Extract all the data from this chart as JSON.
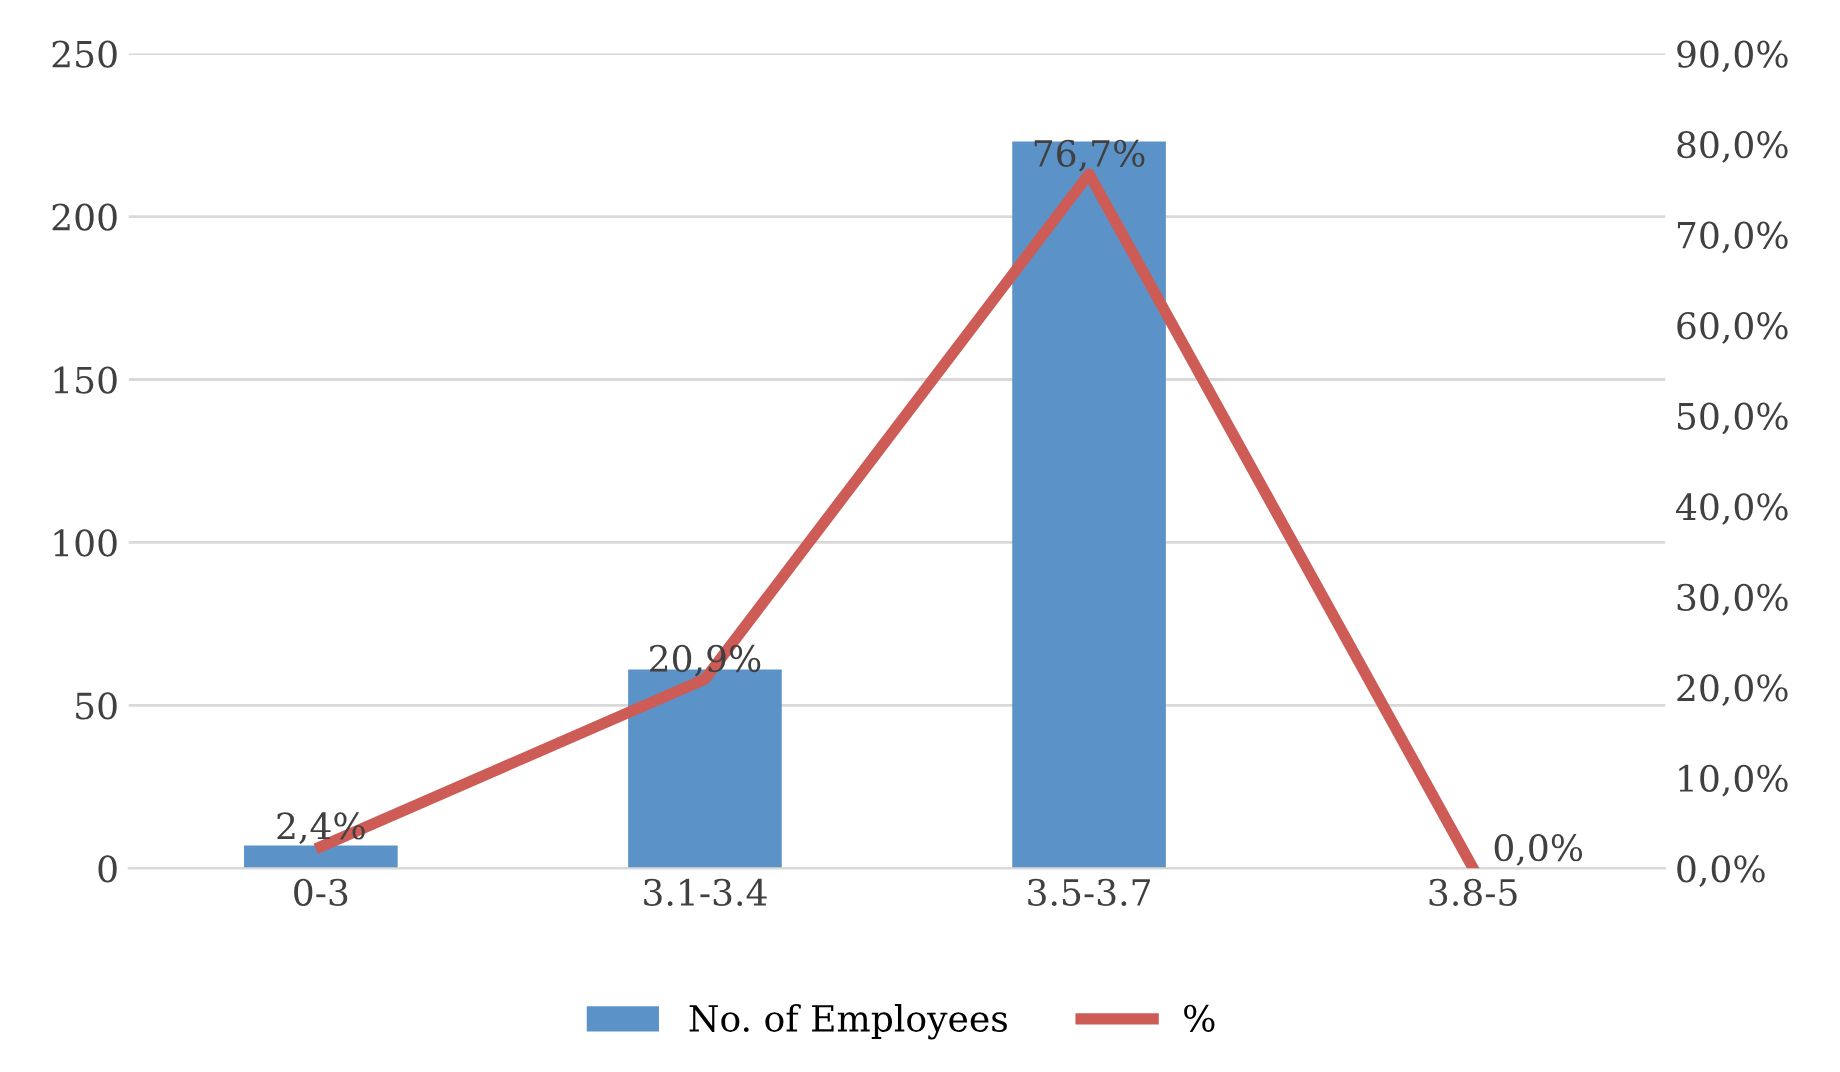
{
  "chart_data": {
    "type": "bar",
    "categories": [
      "0-3",
      "3.1-3.4",
      "3.5-3.7",
      "3.8-5"
    ],
    "series": [
      {
        "name": "No. of Employees",
        "color": "#5b93c8",
        "values": [
          7,
          61,
          223,
          0
        ]
      },
      {
        "name": "%",
        "type": "line",
        "axis": "y2",
        "color": "#cd5c57",
        "values": [
          2.4,
          20.9,
          76.7,
          0.0
        ],
        "value_labels": [
          "2,4%",
          "20,9%",
          "76,7%",
          "0,0%"
        ]
      }
    ],
    "ylim": [
      0,
      250
    ],
    "yticks": [
      0,
      50,
      100,
      150,
      200,
      250
    ],
    "y2lim": [
      0,
      90
    ],
    "y2ticks": [
      {
        "value": 0,
        "label": "0,0%"
      },
      {
        "value": 10,
        "label": "10,0%"
      },
      {
        "value": 20,
        "label": "20,0%"
      },
      {
        "value": 30,
        "label": "30,0%"
      },
      {
        "value": 40,
        "label": "40,0%"
      },
      {
        "value": 50,
        "label": "50,0%"
      },
      {
        "value": 60,
        "label": "60,0%"
      },
      {
        "value": 70,
        "label": "70,0%"
      },
      {
        "value": 80,
        "label": "80,0%"
      },
      {
        "value": 90,
        "label": "90,0%"
      }
    ],
    "grid": "y",
    "legend": "bottom",
    "marker": "none",
    "line_style": "solid"
  }
}
